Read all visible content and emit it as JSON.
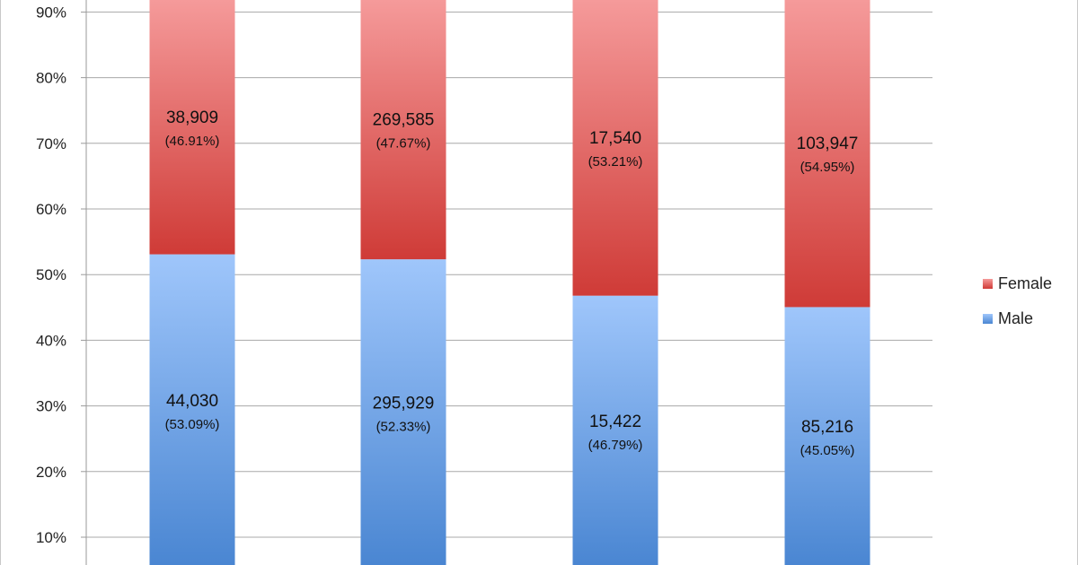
{
  "chart_data": {
    "type": "bar",
    "stacked": true,
    "percent_stacked": true,
    "categories": [
      "",
      "",
      "",
      ""
    ],
    "y_tick_labels": [
      "10%",
      "20%",
      "30%",
      "40%",
      "50%",
      "60%",
      "70%",
      "80%",
      "90%"
    ],
    "ylim_visible": [
      0.07,
      0.92
    ],
    "grid": true,
    "legend_placement": "right",
    "series": [
      {
        "name": "Male",
        "color_top": "#9fc6fb",
        "color_bottom": "#4a86d2",
        "counts": [
          "44,030",
          "295,929",
          "15,422",
          "85,216"
        ],
        "percent_labels": [
          "(53.09%)",
          "(52.33%)",
          "(46.79%)",
          "(45.05%)"
        ],
        "values": [
          53.09,
          52.33,
          46.79,
          45.05
        ]
      },
      {
        "name": "Female",
        "color_top": "#f59a9a",
        "color_bottom": "#cf3b37",
        "counts": [
          "38,909",
          "269,585",
          "17,540",
          "103,947"
        ],
        "percent_labels": [
          "(46.91%)",
          "(47.67%)",
          "(53.21%)",
          "(54.95%)"
        ],
        "values": [
          46.91,
          47.67,
          53.21,
          54.95
        ]
      }
    ],
    "legend": [
      "Female",
      "Male"
    ]
  }
}
